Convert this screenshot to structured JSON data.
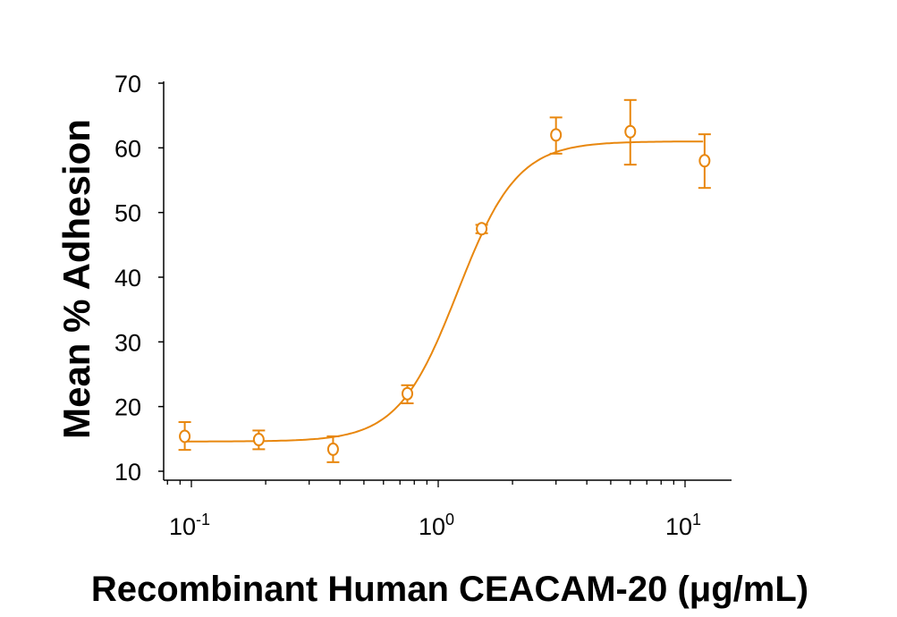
{
  "chart_data": {
    "type": "scatter",
    "title": "",
    "xlabel": "Recombinant Human CEACAM-20 (μg/mL)",
    "ylabel": "Mean % Adhesion",
    "xscale": "log",
    "xlim": [
      0.072,
      15
    ],
    "ylim": [
      8.6,
      70
    ],
    "x_ticks": [
      {
        "value": 0.1,
        "base": "10",
        "exp": "-1"
      },
      {
        "value": 1,
        "base": "10",
        "exp": "0"
      },
      {
        "value": 10,
        "base": "10",
        "exp": "1"
      }
    ],
    "y_ticks": [
      "10",
      "20",
      "30",
      "40",
      "50",
      "60",
      "70"
    ],
    "grid": false,
    "color": "#E8870E",
    "series": [
      {
        "x": [
          0.094,
          0.1875,
          0.375,
          0.75,
          1.5,
          3,
          6,
          12
        ],
        "y": [
          15.4,
          14.9,
          13.4,
          22.0,
          47.5,
          62.0,
          62.5,
          58.0
        ],
        "error_low": [
          13.3,
          13.4,
          11.4,
          20.5,
          46.8,
          59.1,
          57.4,
          53.8
        ],
        "error_high": [
          17.6,
          16.3,
          15.4,
          23.3,
          48.1,
          64.7,
          67.4,
          62.1
        ],
        "marker": "open-circle"
      }
    ],
    "fit": {
      "type": "4-parameter logistic",
      "bottom": 14.6,
      "top": 61.0,
      "ec50": 1.2,
      "hill": 3.6
    }
  }
}
